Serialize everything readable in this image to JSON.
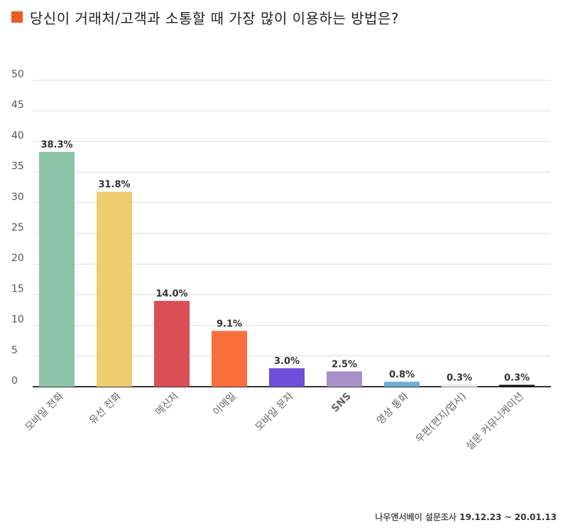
{
  "chart_data": {
    "type": "bar",
    "title": "당신이 거래처/고객과 소통할 때 가장 많이 이용하는 방법은?",
    "categories": [
      "모바일 전화",
      "유선 전화",
      "메신저",
      "이메일",
      "모바일 문자",
      "SNS",
      "영상 통화",
      "우편(편지/엽서)",
      "설문 커뮤니케이션"
    ],
    "values": [
      38.3,
      31.8,
      14.0,
      9.1,
      3.0,
      2.5,
      0.8,
      0.3,
      0.3
    ],
    "value_labels": [
      "38.3%",
      "31.8%",
      "14.0%",
      "9.1%",
      "3.0%",
      "2.5%",
      "0.8%",
      "0.3%",
      "0.3%"
    ],
    "colors": [
      "#8dc3a6",
      "#efcc6e",
      "#d94f55",
      "#f96f3b",
      "#6e4fd9",
      "#a890c9",
      "#6aafd6",
      "#f2f2f2",
      "#111111"
    ],
    "y_ticks": [
      "0",
      "5",
      "10",
      "15",
      "20",
      "25",
      "30",
      "35",
      "40",
      "45",
      "50"
    ],
    "ylim": [
      0,
      50
    ],
    "grid": true,
    "xlabel": "",
    "ylabel": ""
  },
  "title_color": "#ee5a24",
  "source": {
    "label": "나우앤서베이 설문조사",
    "date": "19.12.23 ~ 20.01.13"
  }
}
